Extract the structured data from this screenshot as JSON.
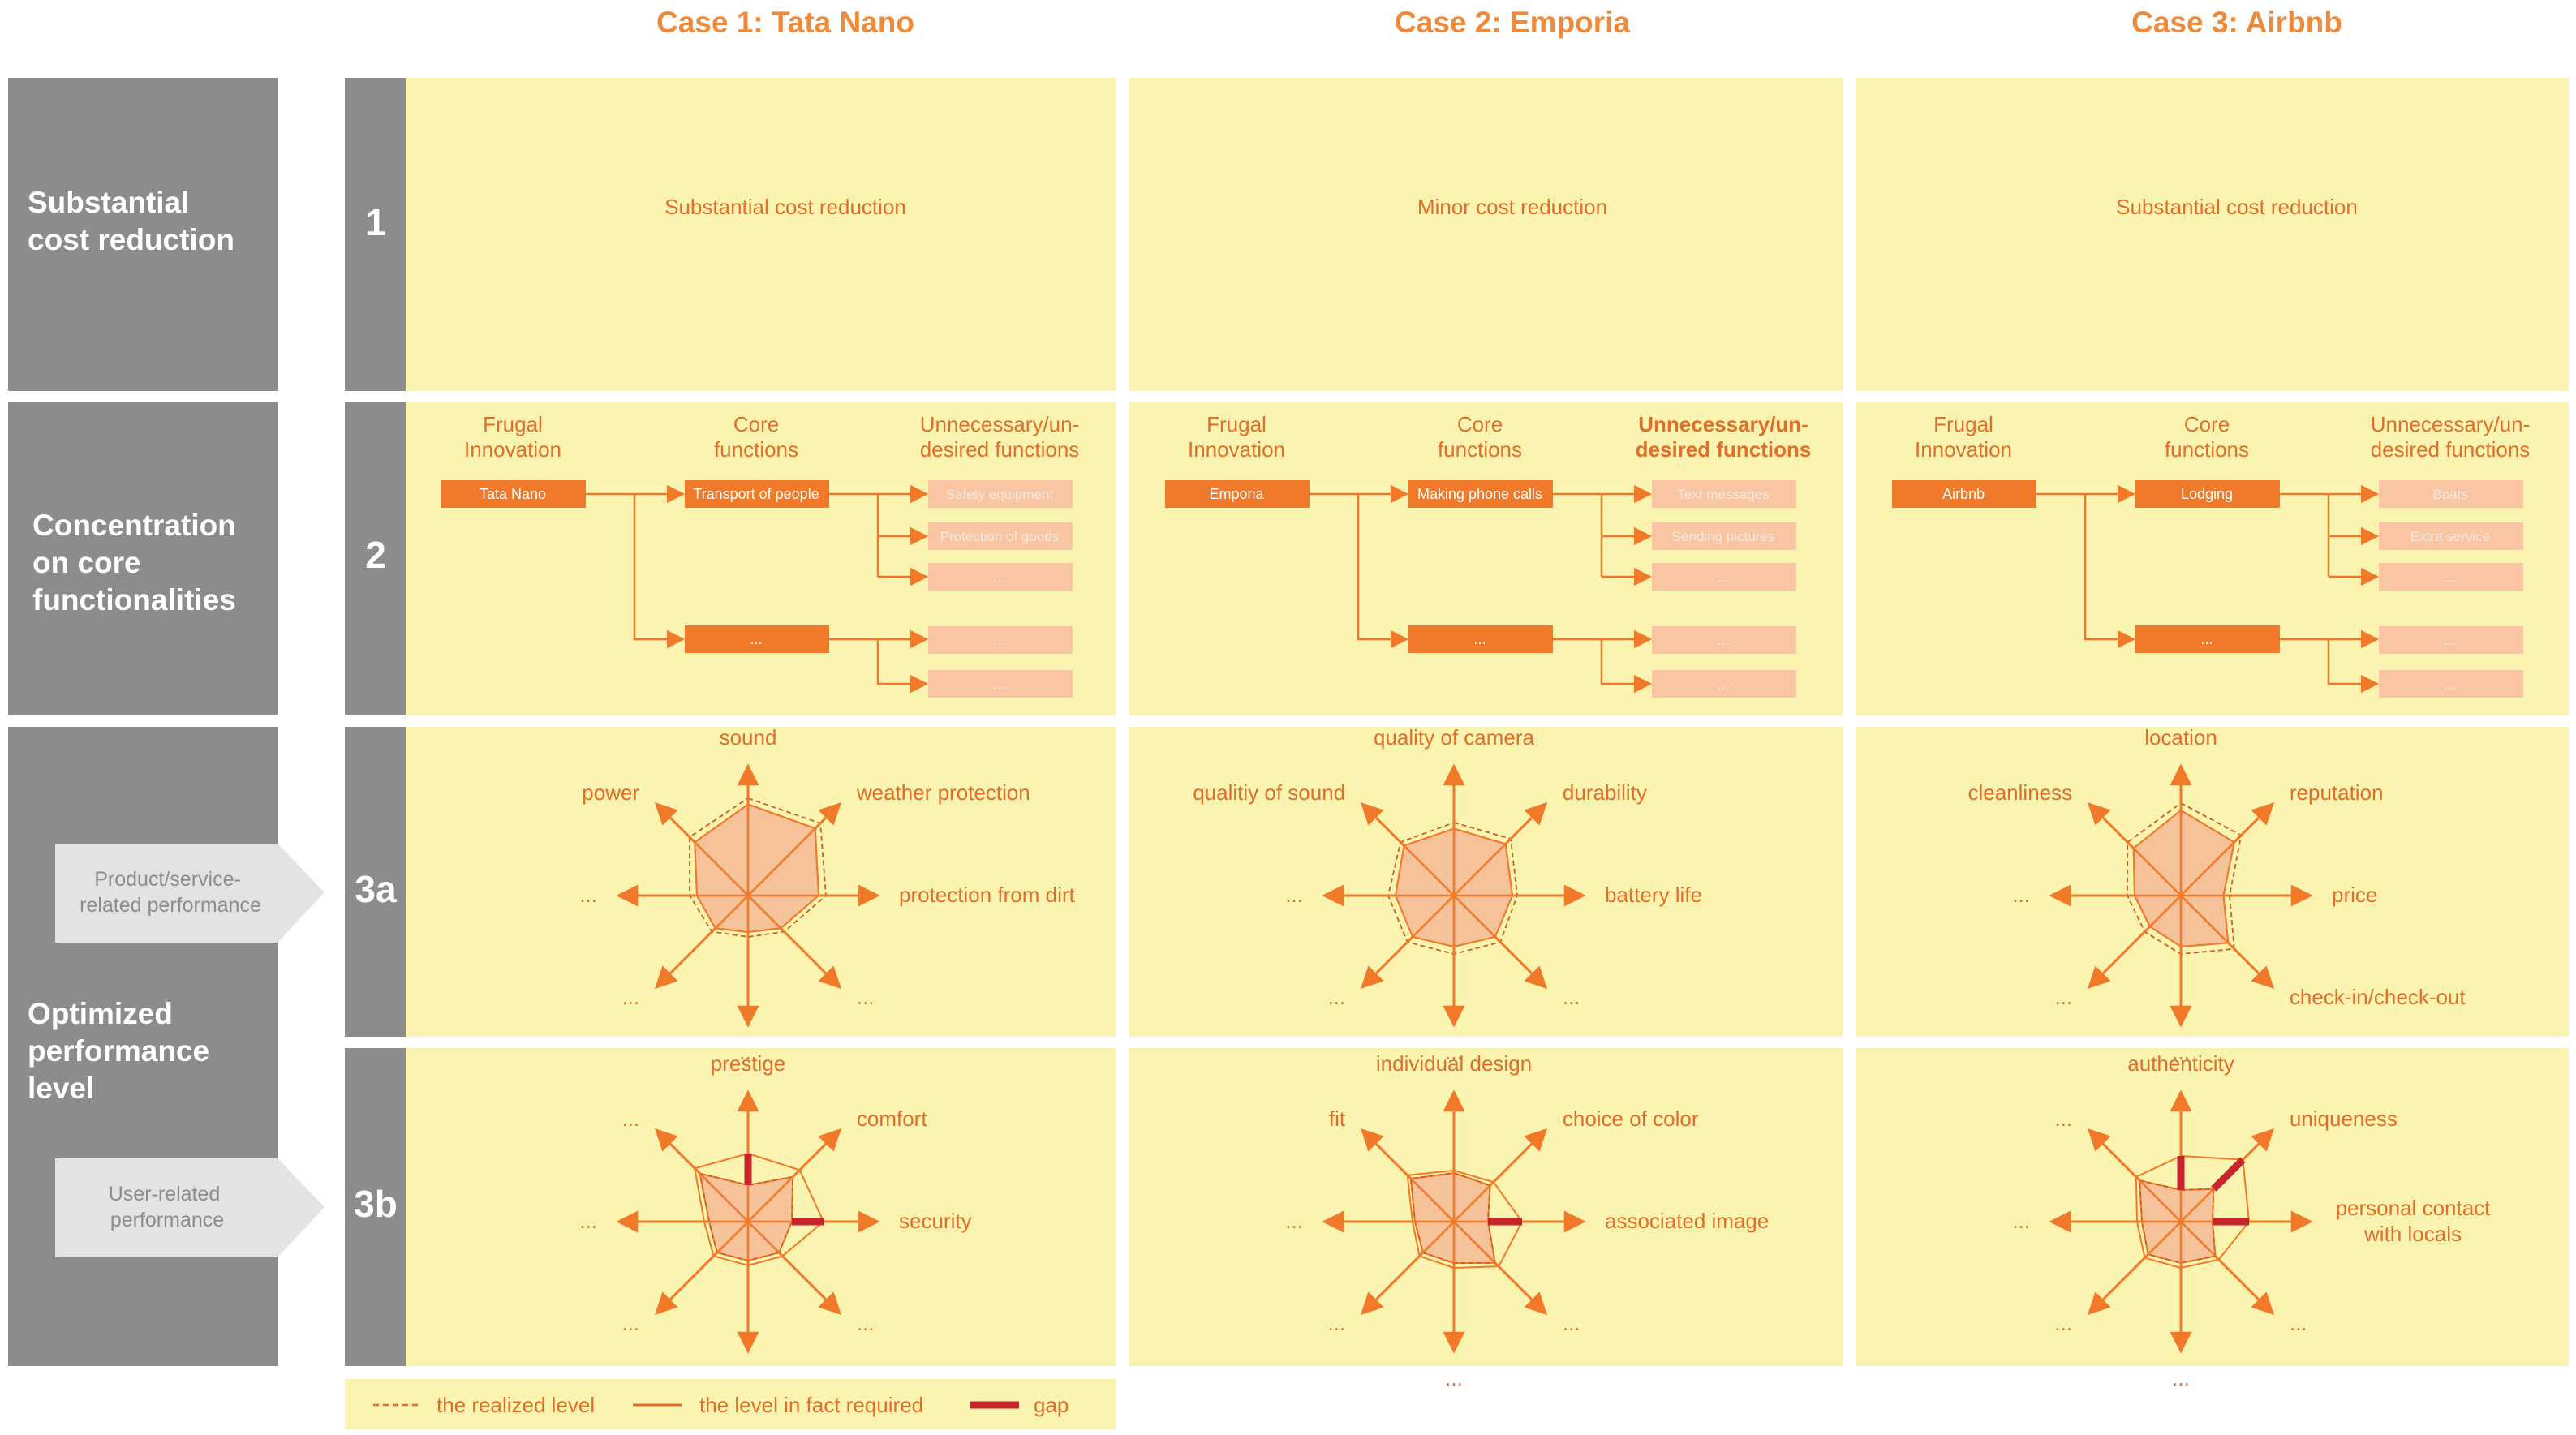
{
  "cases": [
    {
      "title": "Case 1: Tata Nano"
    },
    {
      "title": "Case 2: Emporia"
    },
    {
      "title": "Case 3: Airbnb"
    }
  ],
  "row_labels": {
    "cost": "Substantial cost reduction",
    "core": "Concentration on core functionalities",
    "optimized": "Optimized performance level"
  },
  "row_numbers": {
    "r1": "1",
    "r2": "2",
    "r3a": "3a",
    "r3b": "3b"
  },
  "sub_labels": {
    "product": "Product/service-related performance",
    "user": "User-related performance"
  },
  "row1": [
    "Substantial cost reduction",
    "Minor cost reduction",
    "Substantial cost reduction"
  ],
  "row2_headers": {
    "frugal": "Frugal Innovation",
    "core": "Core functions",
    "unnecessary": "Unnecessary/un-desired functions"
  },
  "row2": [
    {
      "frugal": "Tata Nano",
      "core1": "Transport of people",
      "core2": "...",
      "unnecessary": [
        "Safety equipment",
        "Protection of goods",
        "...",
        "...",
        "..."
      ],
      "bold_header": false
    },
    {
      "frugal": "Emporia",
      "core1": "Making phone calls",
      "core2": "...",
      "unnecessary": [
        "Text messages",
        "Sending pictures",
        "...",
        "...",
        "..."
      ],
      "bold_header": true
    },
    {
      "frugal": "Airbnb",
      "core1": "Lodging",
      "core2": "...",
      "unnecessary": [
        "Boats",
        "Extra service",
        "...",
        "...",
        "..."
      ],
      "bold_header": false
    }
  ],
  "radar_3a": [
    {
      "labels": [
        "sound",
        "weather protection",
        "protection from dirt",
        "...",
        "...",
        "...",
        "...",
        "power"
      ],
      "required": [
        0.75,
        0.78,
        0.58,
        0.38,
        0.3,
        0.38,
        0.42,
        0.62
      ],
      "realized": [
        0.8,
        0.84,
        0.64,
        0.42,
        0.34,
        0.42,
        0.48,
        0.68
      ]
    },
    {
      "labels": [
        "quality of camera",
        "durability",
        "battery life",
        "...",
        "...",
        "...",
        "...",
        "qualitiy of sound"
      ],
      "required": [
        0.55,
        0.6,
        0.48,
        0.48,
        0.42,
        0.48,
        0.48,
        0.58
      ],
      "realized": [
        0.6,
        0.66,
        0.52,
        0.54,
        0.48,
        0.54,
        0.54,
        0.62
      ]
    },
    {
      "labels": [
        "location",
        "reputation",
        "price",
        "check-in/check-out",
        "...",
        "...",
        "...",
        "cleanliness"
      ],
      "required": [
        0.7,
        0.62,
        0.35,
        0.55,
        0.42,
        0.36,
        0.38,
        0.55
      ],
      "realized": [
        0.76,
        0.7,
        0.4,
        0.62,
        0.48,
        0.42,
        0.44,
        0.62
      ]
    }
  ],
  "radar_3b": [
    {
      "labels": [
        "prestige",
        "comfort",
        "security",
        "...",
        "...",
        "...",
        "...",
        "..."
      ],
      "required": [
        0.56,
        0.6,
        0.62,
        0.4,
        0.36,
        0.4,
        0.36,
        0.62
      ],
      "realized": [
        0.3,
        0.52,
        0.36,
        0.36,
        0.32,
        0.36,
        0.32,
        0.56
      ]
    },
    {
      "labels": [
        "individual design",
        "choice of color",
        "associated image",
        "...",
        "...",
        "...",
        "...",
        "fit"
      ],
      "required": [
        0.42,
        0.46,
        0.56,
        0.52,
        0.38,
        0.4,
        0.34,
        0.54
      ],
      "realized": [
        0.4,
        0.42,
        0.28,
        0.48,
        0.34,
        0.36,
        0.32,
        0.5
      ]
    },
    {
      "labels": [
        "authenticity",
        "uniqueness",
        "personal contact with locals",
        "...",
        "...",
        "...",
        "...",
        "..."
      ],
      "required": [
        0.54,
        0.72,
        0.56,
        0.44,
        0.38,
        0.42,
        0.36,
        0.52
      ],
      "realized": [
        0.26,
        0.38,
        0.26,
        0.4,
        0.34,
        0.38,
        0.32,
        0.48
      ]
    }
  ],
  "legend": {
    "realized": "the realized level",
    "required": "the level in fact required",
    "gap": "gap"
  },
  "colors": {
    "gray": "#8c8c8c",
    "yellow": "#fbf3b0",
    "orange": "#f07a2a",
    "pink": "#f9c5a3",
    "title_orange": "#ee8a3a",
    "gap": "#c8242b",
    "radar_fill": "#f3b995",
    "callout": "#e3e3e3"
  }
}
